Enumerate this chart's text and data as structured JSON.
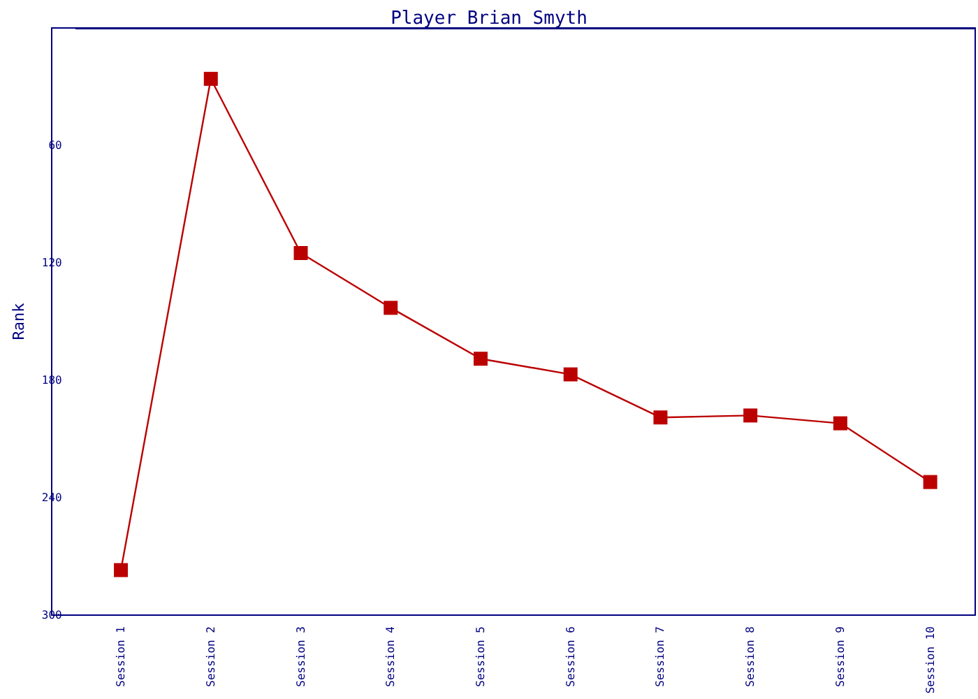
{
  "chart_data": {
    "type": "line",
    "title": "Player Brian Smyth",
    "ylabel": "Rank",
    "categories": [
      "Session 1",
      "Session 2",
      "Session 3",
      "Session 4",
      "Session 5",
      "Session 6",
      "Session 7",
      "Session 8",
      "Session 9",
      "Session 10"
    ],
    "series": [
      {
        "color": "#bb0000",
        "values": [
          277,
          26,
          115,
          143,
          169,
          177,
          199,
          198,
          202,
          232
        ]
      }
    ],
    "ylim": [
      300,
      0
    ],
    "yticks": [
      60,
      120,
      180,
      240,
      300
    ],
    "marker": "square",
    "line_style": "solid",
    "grid": false
  }
}
